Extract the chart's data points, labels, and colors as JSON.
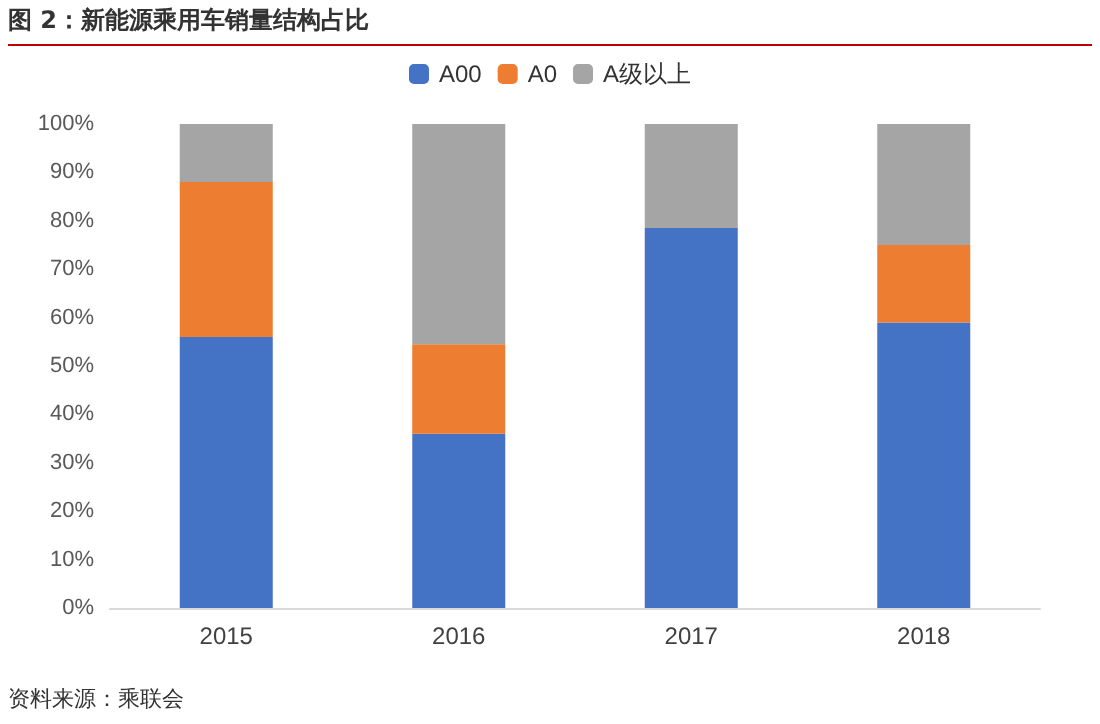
{
  "chart_data": {
    "type": "bar",
    "title": "图 2：新能源乘用车销量结构占比",
    "stacked": true,
    "categories": [
      "2015",
      "2016",
      "2017",
      "2018"
    ],
    "series": [
      {
        "name": "A00",
        "color": "#4472c4",
        "values": [
          56,
          36,
          78.5,
          59
        ]
      },
      {
        "name": "A0",
        "color": "#ed7d31",
        "values": [
          32,
          18.5,
          0,
          16
        ]
      },
      {
        "name": "A级以上",
        "color": "#a5a5a5",
        "values": [
          12,
          45.5,
          21.5,
          25
        ]
      }
    ],
    "ylim": [
      0,
      100
    ],
    "yticks": [
      {
        "value": 0,
        "label": "0%"
      },
      {
        "value": 10,
        "label": "10%"
      },
      {
        "value": 20,
        "label": "20%"
      },
      {
        "value": 30,
        "label": "30%"
      },
      {
        "value": 40,
        "label": "40%"
      },
      {
        "value": 50,
        "label": "50%"
      },
      {
        "value": 60,
        "label": "60%"
      },
      {
        "value": 70,
        "label": "70%"
      },
      {
        "value": 80,
        "label": "80%"
      },
      {
        "value": 90,
        "label": "90%"
      },
      {
        "value": 100,
        "label": "100%"
      }
    ],
    "grid": false,
    "legend": "top",
    "annotations": [
      "资料来源：乘联会"
    ]
  }
}
